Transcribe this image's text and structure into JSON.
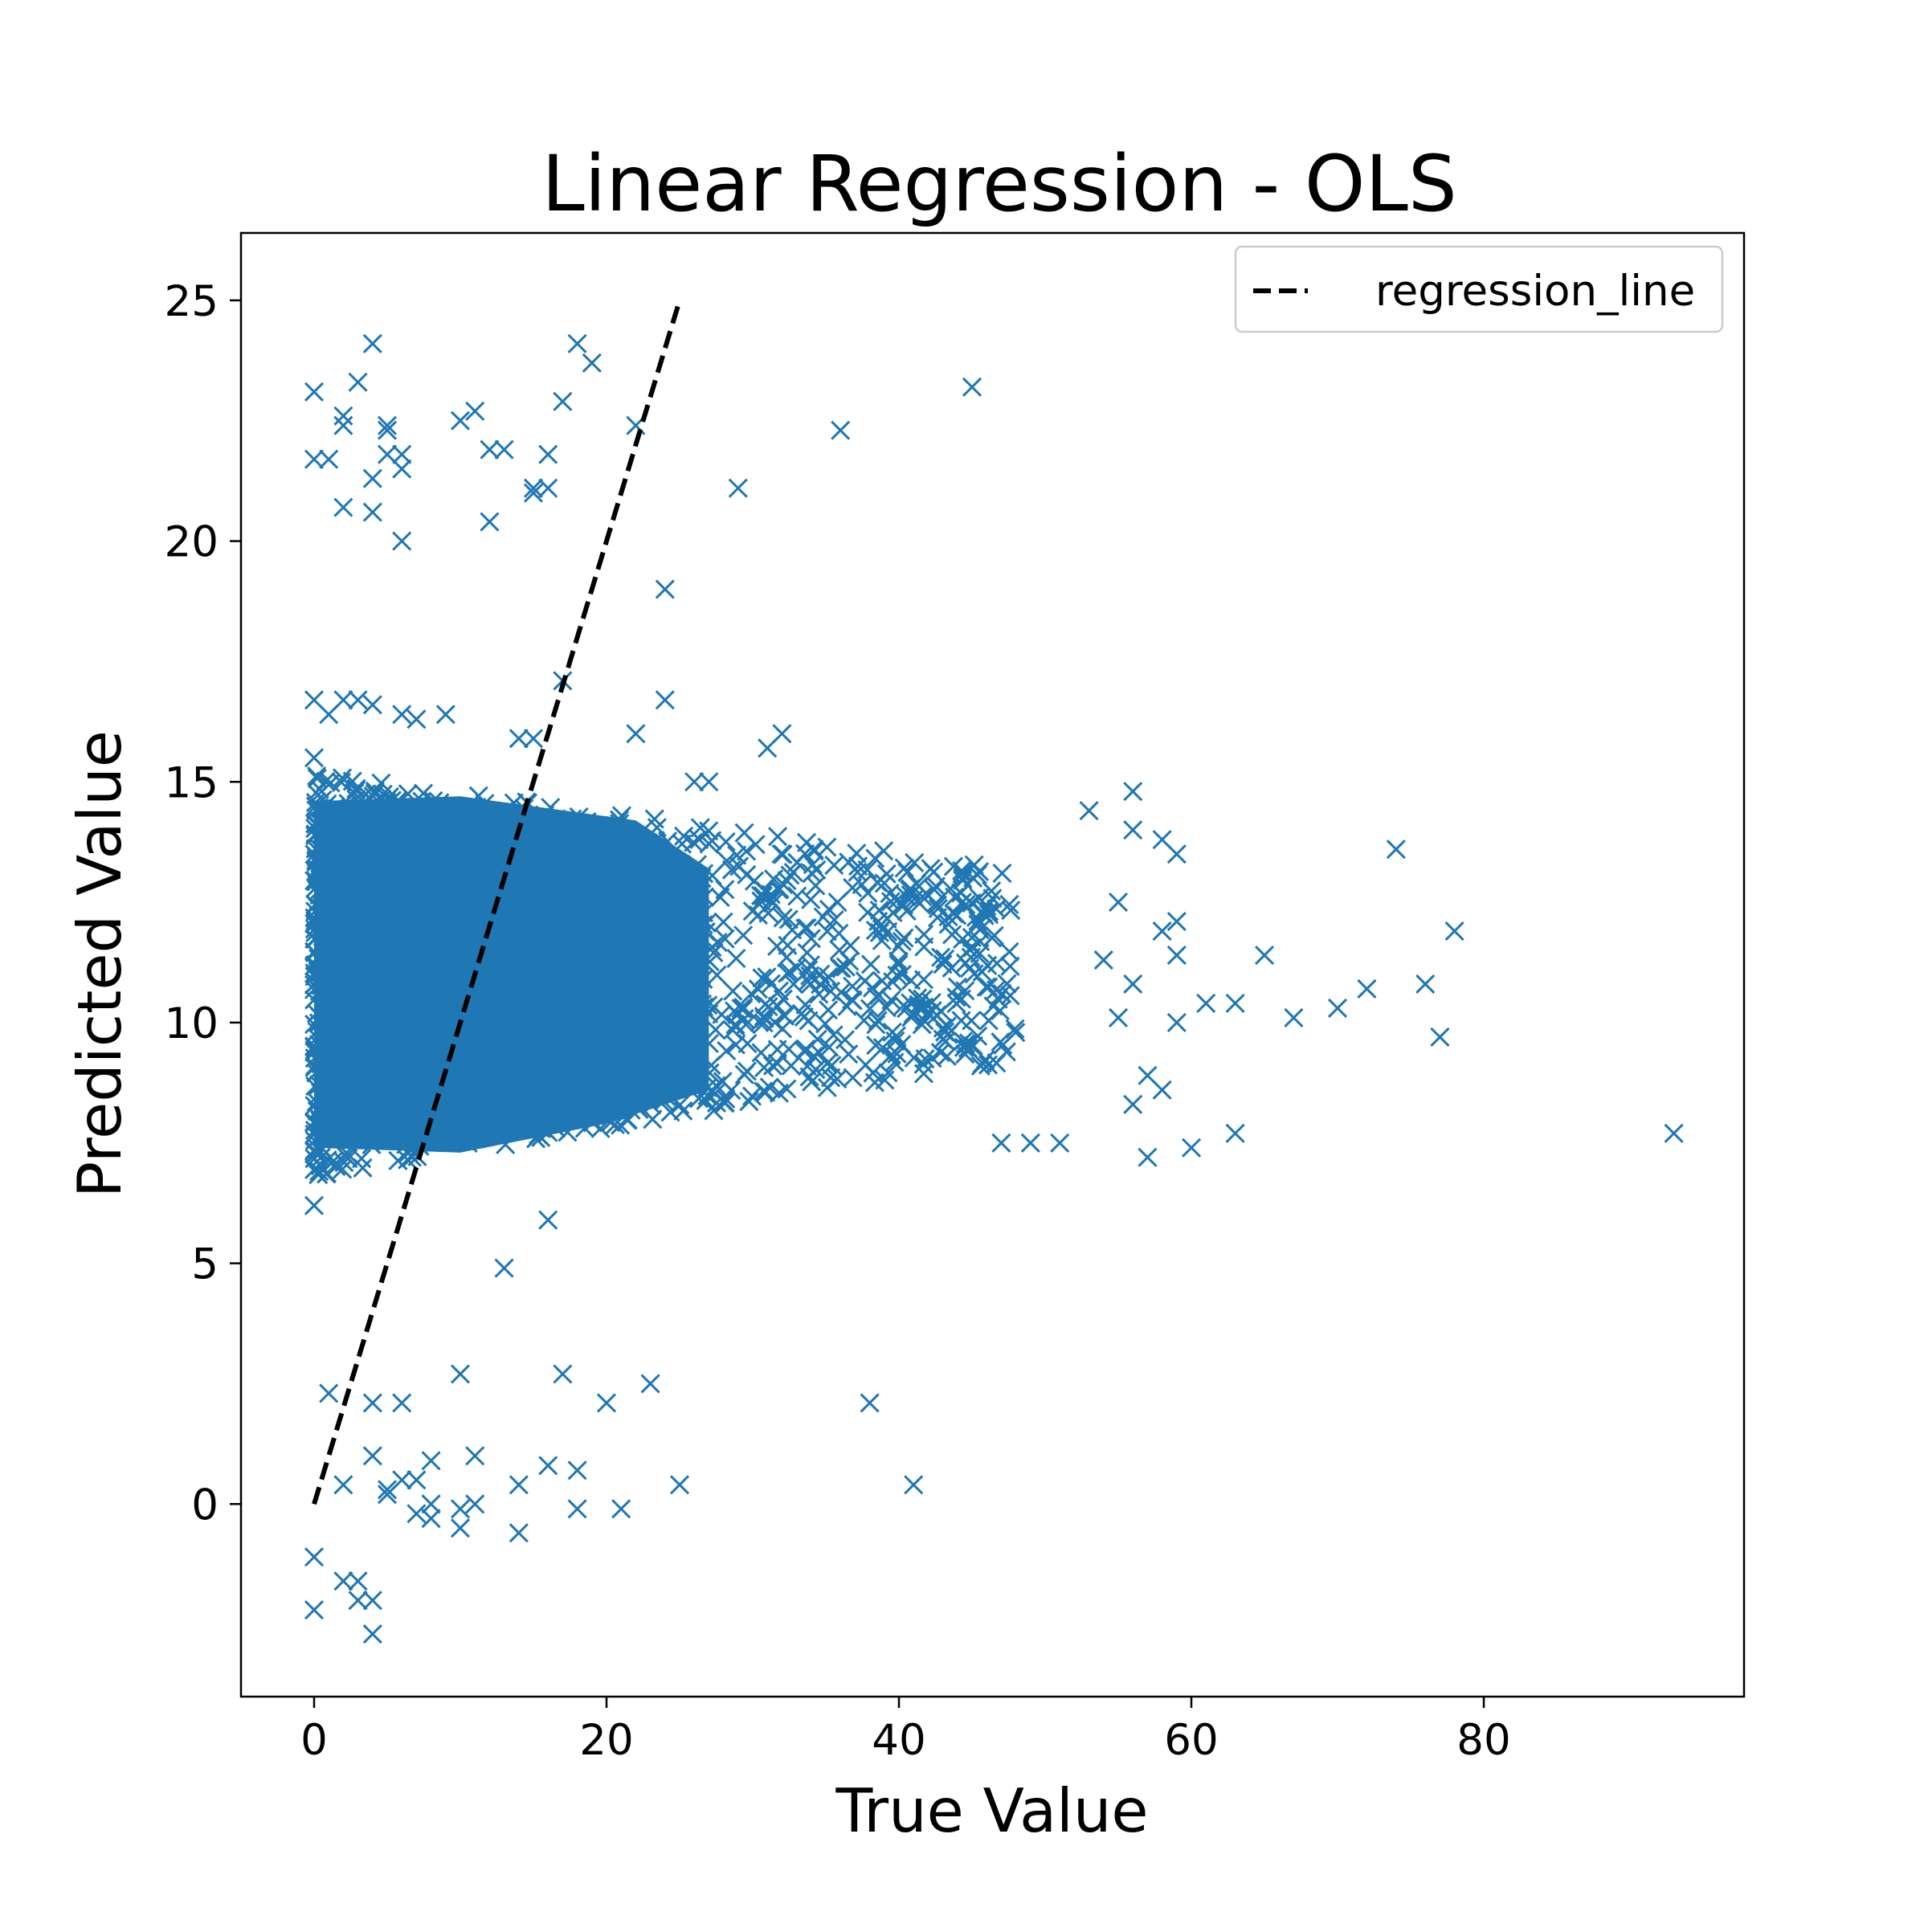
{
  "chart_data": {
    "type": "scatter",
    "title": "Linear Regression - OLS",
    "xlabel": "True Value",
    "ylabel": "Predicted Value",
    "xlim": [
      -5,
      97.8
    ],
    "ylim": [
      -4,
      26.4
    ],
    "xticks": [
      0,
      20,
      40,
      60,
      80
    ],
    "yticks": [
      0,
      5,
      10,
      15,
      20,
      25
    ],
    "grid": false,
    "legend": {
      "position": "top-right",
      "entries": [
        {
          "label": "regression_line",
          "style": "dashed",
          "color": "#000000"
        }
      ]
    },
    "colors": {
      "points": "#1f77b4",
      "line": "#000000"
    },
    "marker": "x",
    "regression_line": {
      "x": [
        0,
        25
      ],
      "y": [
        0,
        25
      ]
    },
    "dense_cluster": {
      "note_values": "dense band of points",
      "x_range": [
        0,
        48
      ],
      "y_center_at_x0": [
        6.8,
        15.2
      ],
      "y_center_at_x48": [
        9.2,
        13.2
      ],
      "count": 1400
    },
    "points": [
      [
        0,
        23.1
      ],
      [
        0,
        21.7
      ],
      [
        1,
        21.7
      ],
      [
        2,
        22.6
      ],
      [
        2,
        22.4
      ],
      [
        2,
        20.7
      ],
      [
        3,
        23.3
      ],
      [
        4,
        24.1
      ],
      [
        4,
        21.3
      ],
      [
        4,
        20.6
      ],
      [
        5,
        22.4
      ],
      [
        5,
        22.3
      ],
      [
        5,
        21.8
      ],
      [
        6,
        21.5
      ],
      [
        6,
        21.8
      ],
      [
        6,
        20.0
      ],
      [
        10,
        22.5
      ],
      [
        11,
        22.7
      ],
      [
        12,
        21.9
      ],
      [
        13,
        21.9
      ],
      [
        12,
        20.4
      ],
      [
        15,
        21.0
      ],
      [
        15,
        21.1
      ],
      [
        16,
        21.1
      ],
      [
        16,
        21.8
      ],
      [
        17,
        22.9
      ],
      [
        18,
        24.1
      ],
      [
        19,
        23.7
      ],
      [
        22,
        22.4
      ],
      [
        24,
        19.0
      ],
      [
        29,
        21.1
      ],
      [
        36,
        22.3
      ],
      [
        45,
        23.2
      ],
      [
        17,
        17.1
      ],
      [
        24,
        16.7
      ],
      [
        22,
        16.0
      ],
      [
        0,
        16.7
      ],
      [
        1,
        16.4
      ],
      [
        2,
        16.7
      ],
      [
        3,
        16.7
      ],
      [
        4,
        16.6
      ],
      [
        6,
        16.4
      ],
      [
        7,
        16.3
      ],
      [
        9,
        16.4
      ],
      [
        14,
        15.9
      ],
      [
        15,
        15.9
      ],
      [
        31,
        15.7
      ],
      [
        32,
        16.0
      ],
      [
        0,
        15.5
      ],
      [
        26,
        15.0
      ],
      [
        27,
        15.0
      ],
      [
        56,
        14.8
      ],
      [
        53,
        14.4
      ],
      [
        56,
        14.0
      ],
      [
        58,
        13.8
      ],
      [
        59,
        13.5
      ],
      [
        74,
        13.6
      ],
      [
        55,
        12.5
      ],
      [
        59,
        12.1
      ],
      [
        78,
        11.9
      ],
      [
        58,
        11.9
      ],
      [
        59,
        11.4
      ],
      [
        65,
        11.4
      ],
      [
        54,
        11.3
      ],
      [
        56,
        10.8
      ],
      [
        76,
        10.8
      ],
      [
        72,
        10.7
      ],
      [
        61,
        10.4
      ],
      [
        63,
        10.4
      ],
      [
        70,
        10.3
      ],
      [
        55,
        10.1
      ],
      [
        67,
        10.1
      ],
      [
        59,
        10.0
      ],
      [
        77,
        9.7
      ],
      [
        57,
        8.9
      ],
      [
        58,
        8.6
      ],
      [
        56,
        8.3
      ],
      [
        63,
        7.7
      ],
      [
        93,
        7.7
      ],
      [
        47,
        7.5
      ],
      [
        49,
        7.5
      ],
      [
        51,
        7.5
      ],
      [
        57,
        7.2
      ],
      [
        60,
        7.4
      ],
      [
        0,
        6.2
      ],
      [
        16,
        5.9
      ],
      [
        13,
        4.9
      ],
      [
        10,
        2.7
      ],
      [
        17,
        2.7
      ],
      [
        23,
        2.5
      ],
      [
        1,
        2.3
      ],
      [
        4,
        2.1
      ],
      [
        6,
        2.1
      ],
      [
        20,
        2.1
      ],
      [
        38,
        2.1
      ],
      [
        4,
        1.0
      ],
      [
        8,
        0.9
      ],
      [
        11,
        1.0
      ],
      [
        16,
        0.8
      ],
      [
        18,
        0.7
      ],
      [
        2,
        0.4
      ],
      [
        5,
        0.3
      ],
      [
        6,
        0.5
      ],
      [
        7,
        0.5
      ],
      [
        5,
        0.2
      ],
      [
        14,
        0.4
      ],
      [
        25,
        0.4
      ],
      [
        41,
        0.4
      ],
      [
        8,
        0.0
      ],
      [
        7,
        -0.2
      ],
      [
        8,
        -0.3
      ],
      [
        10,
        -0.1
      ],
      [
        11,
        0.0
      ],
      [
        10,
        -0.5
      ],
      [
        14,
        -0.6
      ],
      [
        18,
        -0.1
      ],
      [
        21,
        -0.1
      ],
      [
        0,
        -1.1
      ],
      [
        2,
        -1.6
      ],
      [
        3,
        -1.6
      ],
      [
        3,
        -2.0
      ],
      [
        4,
        -2.0
      ],
      [
        0,
        -2.2
      ],
      [
        4,
        -2.7
      ]
    ]
  }
}
